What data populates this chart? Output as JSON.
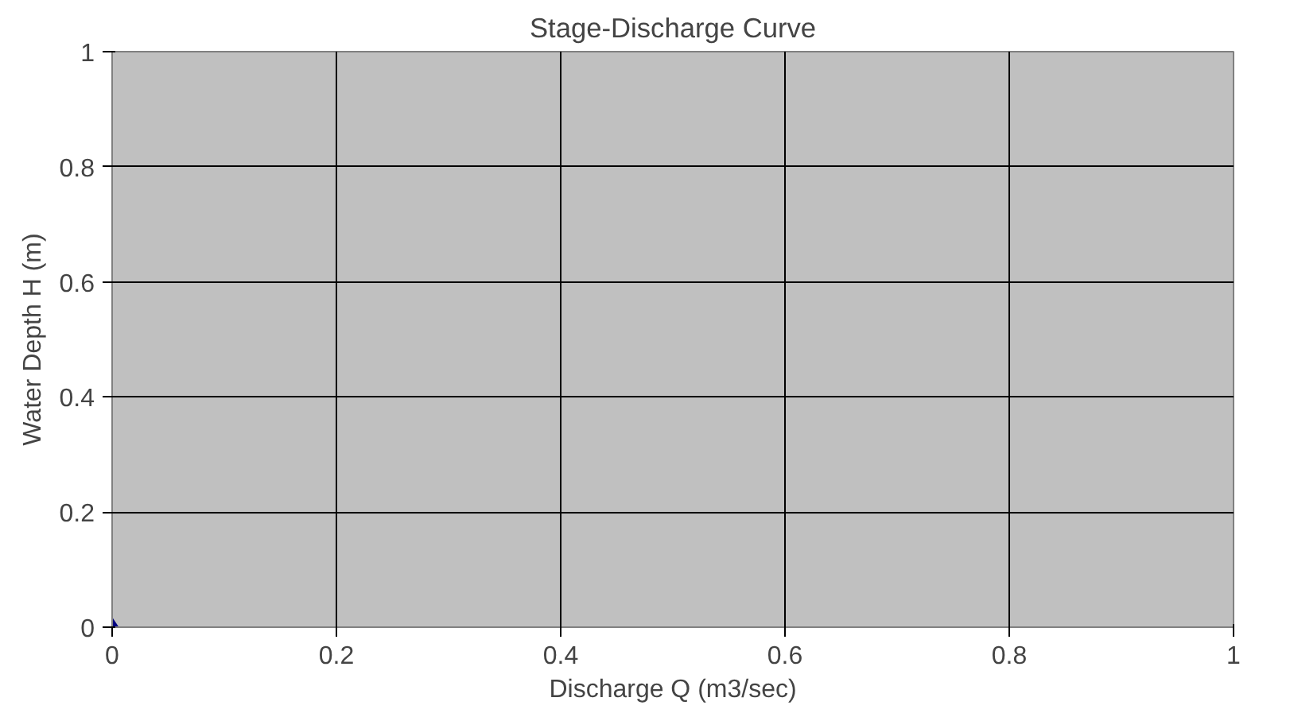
{
  "chart_data": {
    "type": "scatter",
    "title": "Stage-Discharge Curve",
    "xlabel": "Discharge Q (m3/sec)",
    "ylabel": "Water Depth H (m)",
    "x": [
      0
    ],
    "series": [
      {
        "color": "#000080",
        "values": [
          0
        ]
      }
    ],
    "xlim": [
      0,
      1
    ],
    "ylim": [
      0,
      1
    ],
    "xticks": [
      0,
      0.2,
      0.4,
      0.6,
      0.8,
      1
    ],
    "yticks": [
      0,
      0.2,
      0.4,
      0.6,
      0.8,
      1
    ],
    "grid": true,
    "marker": "diamond"
  }
}
